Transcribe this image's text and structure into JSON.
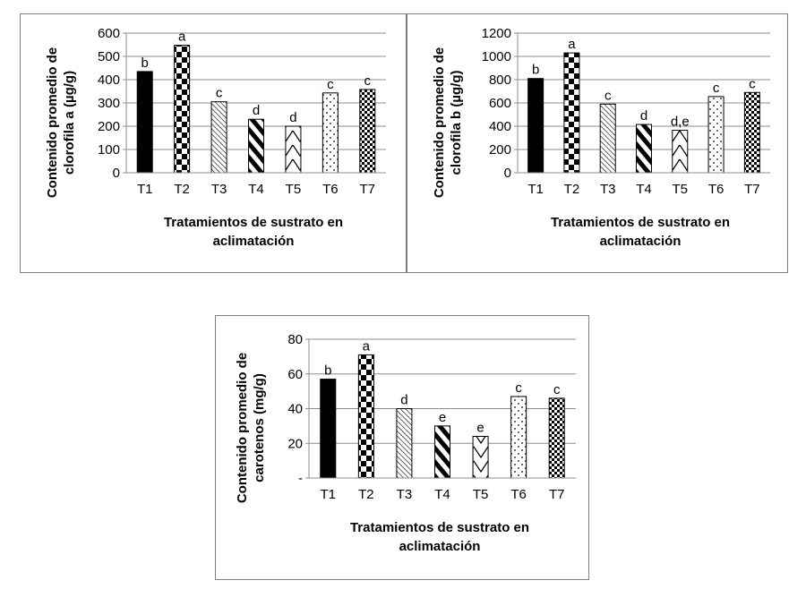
{
  "chart_data": [
    {
      "type": "bar",
      "ylabel_lines": [
        "Contenido promedio de",
        "clorofila a (µg/g)"
      ],
      "xlabel_lines": [
        "Tratamientos de sustrato en",
        "aclimatación"
      ],
      "categories": [
        "T1",
        "T2",
        "T3",
        "T4",
        "T5",
        "T6",
        "T7"
      ],
      "values": [
        435,
        548,
        305,
        230,
        200,
        343,
        358
      ],
      "labels": [
        "b",
        "a",
        "c",
        "d",
        "d",
        "c",
        "c"
      ],
      "ylim": [
        0,
        600
      ],
      "yticks": [
        "0",
        "100",
        "200",
        "300",
        "400",
        "500",
        "600"
      ],
      "grid": true,
      "legend": "none"
    },
    {
      "type": "bar",
      "ylabel_lines": [
        "Contenido promedio de",
        "clorofila b (µg/g)"
      ],
      "xlabel_lines": [
        "Tratamientos de sustrato en",
        "aclimatación"
      ],
      "categories": [
        "T1",
        "T2",
        "T3",
        "T4",
        "T5",
        "T6",
        "T7"
      ],
      "values": [
        810,
        1030,
        590,
        415,
        365,
        655,
        690
      ],
      "labels": [
        "b",
        "a",
        "c",
        "d",
        "d,e",
        "c",
        "c"
      ],
      "ylim": [
        0,
        1200
      ],
      "yticks": [
        "0",
        "200",
        "400",
        "600",
        "800",
        "1000",
        "1200"
      ],
      "grid": true,
      "legend": "none"
    },
    {
      "type": "bar",
      "ylabel_lines": [
        "Contenido promedio de",
        "carotenos (mg/g)"
      ],
      "xlabel_lines": [
        "Tratamientos de sustrato en",
        "aclimatación"
      ],
      "categories": [
        "T1",
        "T2",
        "T3",
        "T4",
        "T5",
        "T6",
        "T7"
      ],
      "values": [
        57,
        71,
        40,
        30,
        24,
        47,
        46
      ],
      "labels": [
        "b",
        "a",
        "d",
        "e",
        "e",
        "c",
        "c"
      ],
      "ylim": [
        0,
        80
      ],
      "yticks": [
        "-",
        "20",
        "40",
        "60",
        "80"
      ],
      "grid": true,
      "legend": "none"
    }
  ],
  "bar_patterns": [
    "solid-black",
    "checker-large",
    "diagonal-thin",
    "diagonal-thick",
    "zigzag",
    "dots",
    "checker-small"
  ]
}
